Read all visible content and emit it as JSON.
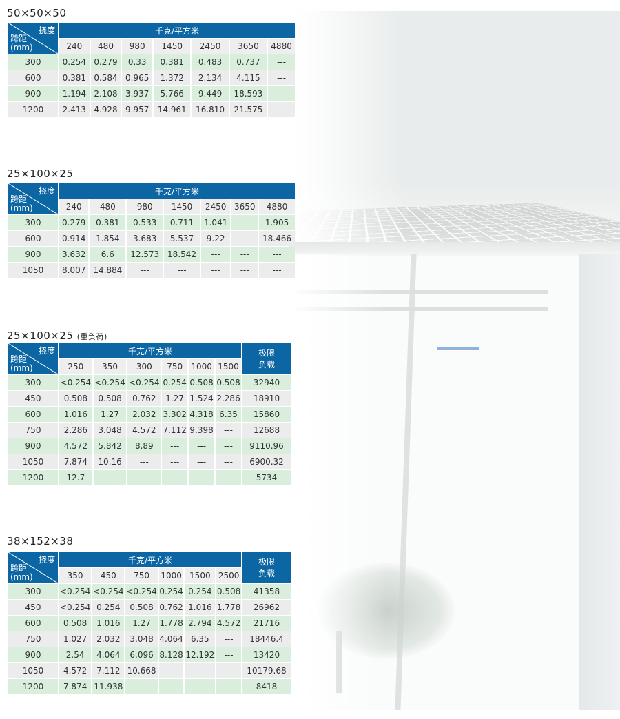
{
  "colors": {
    "header_blue": "#0b66a3",
    "row_green": "#d9eedd",
    "row_gray": "#ececec"
  },
  "photo": {
    "subject": "grid ceiling photo",
    "icon": "ceiling-photo"
  },
  "common": {
    "deflection_label": "挠度",
    "span_label": "跨距",
    "span_unit": "(mm)",
    "load_group": "千克/平方米",
    "limit_load": "极限负载"
  },
  "tables": [
    {
      "title": "50×50×50",
      "note": "",
      "columns": [
        "240",
        "480",
        "980",
        "1450",
        "2450",
        "3650",
        "4880"
      ],
      "has_limit": false,
      "rows": [
        {
          "span": "300",
          "values": [
            "0.254",
            "0.279",
            "0.33",
            "0.381",
            "0.483",
            "0.737",
            "---"
          ]
        },
        {
          "span": "600",
          "values": [
            "0.381",
            "0.584",
            "0.965",
            "1.372",
            "2.134",
            "4.115",
            "---"
          ]
        },
        {
          "span": "900",
          "values": [
            "1.194",
            "2.108",
            "3.937",
            "5.766",
            "9.449",
            "18.593",
            "---"
          ]
        },
        {
          "span": "1200",
          "values": [
            "2.413",
            "4.928",
            "9.957",
            "14.961",
            "16.810",
            "21.575",
            "---"
          ]
        }
      ]
    },
    {
      "title": "25×100×25",
      "note": "",
      "columns": [
        "240",
        "480",
        "980",
        "1450",
        "2450",
        "3650",
        "4880"
      ],
      "has_limit": false,
      "rows": [
        {
          "span": "300",
          "values": [
            "0.279",
            "0.381",
            "0.533",
            "0.711",
            "1.041",
            "---",
            "1.905"
          ]
        },
        {
          "span": "600",
          "values": [
            "0.914",
            "1.854",
            "3.683",
            "5.537",
            "9.22",
            "---",
            "18.466"
          ]
        },
        {
          "span": "900",
          "values": [
            "3.632",
            "6.6",
            "12.573",
            "18.542",
            "---",
            "---",
            "---"
          ]
        },
        {
          "span": "1050",
          "values": [
            "8.007",
            "14.884",
            "---",
            "---",
            "---",
            "---",
            "---"
          ]
        }
      ]
    },
    {
      "title": "25×100×25",
      "note": "(重负荷)",
      "columns": [
        "250",
        "350",
        "300",
        "750",
        "1000",
        "1500"
      ],
      "has_limit": true,
      "rows": [
        {
          "span": "300",
          "values": [
            "<0.254",
            "<0.254",
            "<0.254",
            "0.254",
            "0.508",
            "0.508"
          ],
          "limit": "32940"
        },
        {
          "span": "450",
          "values": [
            "0.508",
            "0.508",
            "0.762",
            "1.27",
            "1.524",
            "2.286"
          ],
          "limit": "18910"
        },
        {
          "span": "600",
          "values": [
            "1.016",
            "1.27",
            "2.032",
            "3.302",
            "4.318",
            "6.35"
          ],
          "limit": "15860"
        },
        {
          "span": "750",
          "values": [
            "2.286",
            "3.048",
            "4.572",
            "7.112",
            "9.398",
            "---"
          ],
          "limit": "12688"
        },
        {
          "span": "900",
          "values": [
            "4.572",
            "5.842",
            "8.89",
            "---",
            "---",
            "---"
          ],
          "limit": "9110.96"
        },
        {
          "span": "1050",
          "values": [
            "7.874",
            "10.16",
            "---",
            "---",
            "---",
            "---"
          ],
          "limit": "6900.32"
        },
        {
          "span": "1200",
          "values": [
            "12.7",
            "---",
            "---",
            "---",
            "---",
            "---"
          ],
          "limit": "5734"
        }
      ]
    },
    {
      "title": "38×152×38",
      "note": "",
      "columns": [
        "350",
        "450",
        "750",
        "1000",
        "1500",
        "2500"
      ],
      "has_limit": true,
      "rows": [
        {
          "span": "300",
          "values": [
            "<0.254",
            "<0.254",
            "<0.254",
            "0.254",
            "0.254",
            "0.508"
          ],
          "limit": "41358"
        },
        {
          "span": "450",
          "values": [
            "<0.254",
            "0.254",
            "0.508",
            "0.762",
            "1.016",
            "1.778"
          ],
          "limit": "26962"
        },
        {
          "span": "600",
          "values": [
            "0.508",
            "1.016",
            "1.27",
            "1.778",
            "2.794",
            "4.572"
          ],
          "limit": "21716"
        },
        {
          "span": "750",
          "values": [
            "1.027",
            "2.032",
            "3.048",
            "4.064",
            "6.35",
            "---"
          ],
          "limit": "18446.4"
        },
        {
          "span": "900",
          "values": [
            "2.54",
            "4.064",
            "6.096",
            "8.128",
            "12.192",
            "---"
          ],
          "limit": "13420"
        },
        {
          "span": "1050",
          "values": [
            "4.572",
            "7.112",
            "10.668",
            "---",
            "---",
            "---"
          ],
          "limit": "10179.68"
        },
        {
          "span": "1200",
          "values": [
            "7.874",
            "11.938",
            "---",
            "---",
            "---",
            "---"
          ],
          "limit": "8418"
        }
      ]
    }
  ]
}
